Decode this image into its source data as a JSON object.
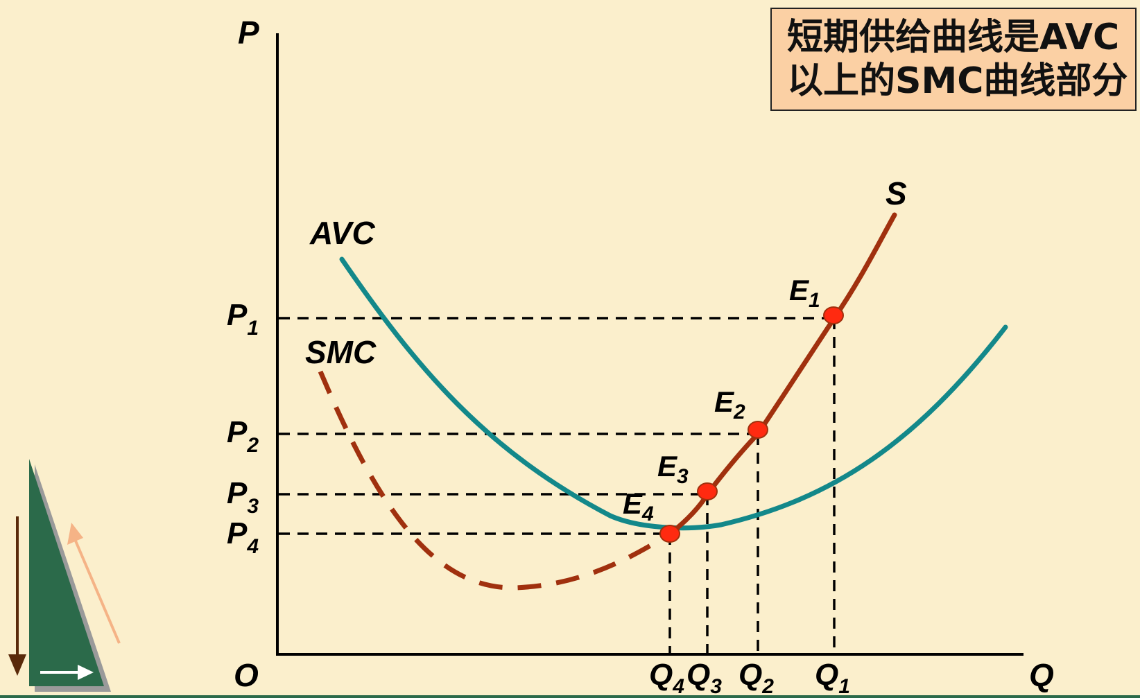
{
  "caption": {
    "line1": "短期供给曲线是AVC",
    "line2": "以上的SMC曲线部分"
  },
  "axes": {
    "y_label": "P",
    "x_label": "Q",
    "origin": "O"
  },
  "curves": {
    "avc": "AVC",
    "smc": "SMC",
    "supply": "S"
  },
  "points": [
    {
      "name": "E1",
      "main": "E",
      "sub": "1",
      "price_main": "P",
      "price_sub": "1",
      "qty_main": "Q",
      "qty_sub": "1"
    },
    {
      "name": "E2",
      "main": "E",
      "sub": "2",
      "price_main": "P",
      "price_sub": "2",
      "qty_main": "Q",
      "qty_sub": "2"
    },
    {
      "name": "E3",
      "main": "E",
      "sub": "3",
      "price_main": "P",
      "price_sub": "3",
      "qty_main": "Q",
      "qty_sub": "3"
    },
    {
      "name": "E4",
      "main": "E",
      "sub": "4",
      "price_main": "P",
      "price_sub": "4",
      "qty_main": "Q",
      "qty_sub": "4"
    }
  ],
  "colors": {
    "background": "#fbefcc",
    "avc_curve": "#13888a",
    "smc_curve": "#a0300e",
    "point_fill": "#ff2a10",
    "caption_bg": "#fbd0a4",
    "nav_triangle": "#2b6a4a"
  }
}
